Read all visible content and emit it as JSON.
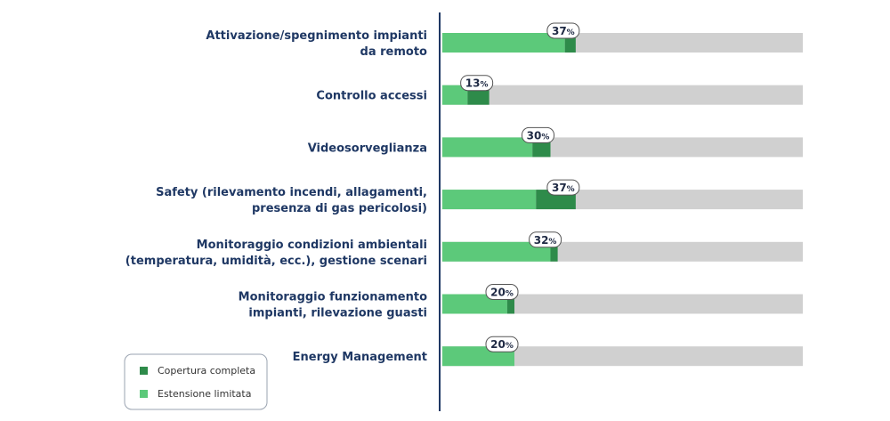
{
  "chart_data": {
    "type": "bar",
    "orientation": "horizontal",
    "stacked": true,
    "categories": [
      [
        "Attivazione/spegnimento impianti",
        "da remoto"
      ],
      [
        "Controllo accessi"
      ],
      [
        "Videosorveglianza"
      ],
      [
        "Safety (rilevamento incendi, allagamenti,",
        "presenza di gas pericolosi)"
      ],
      [
        "Monitoraggio condizioni ambientali",
        "(temperatura, umidità, ecc.), gestione scenari"
      ],
      [
        "Monitoraggio funzionamento",
        "impianti, rilevazione guasti"
      ],
      [
        "Energy Management"
      ]
    ],
    "totals": [
      "37",
      "13",
      "30",
      "37",
      "32",
      "20",
      "20"
    ],
    "percent_symbol": "%",
    "series": [
      {
        "name": "Estensione limitata",
        "color": "#5cc97a",
        "values": [
          34,
          7,
          25,
          26,
          30,
          18,
          20
        ]
      },
      {
        "name": "Copertura completa",
        "color": "#2e8b4a",
        "values": [
          3,
          6,
          5,
          11,
          2,
          2,
          0
        ]
      }
    ],
    "background_color": "#d0d0d0",
    "xlim": [
      0,
      100
    ],
    "legend": {
      "placement": "bottom-left",
      "entries": [
        {
          "label": "Copertura completa",
          "color": "#2e8b4a"
        },
        {
          "label": "Estensione limitata",
          "color": "#5cc97a"
        }
      ]
    },
    "axis_color": "#1f3864",
    "grid": false
  }
}
